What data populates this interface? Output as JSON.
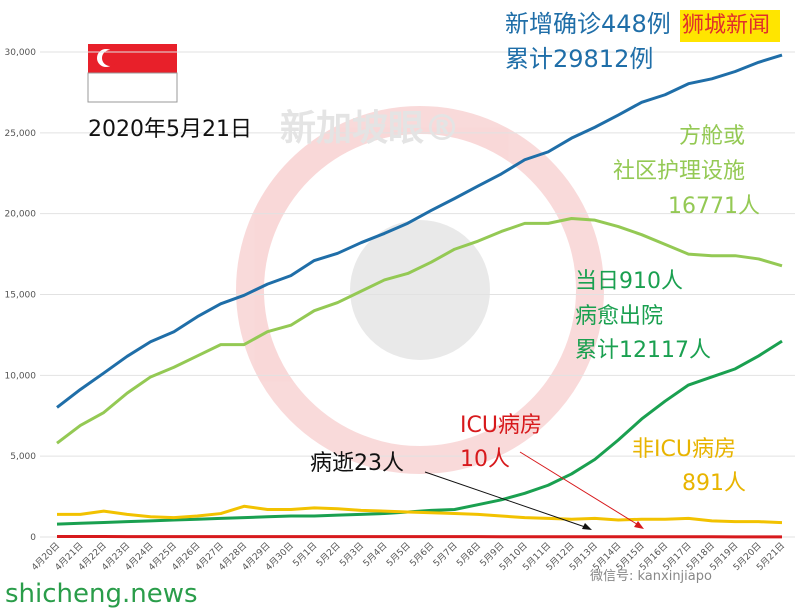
{
  "chart_data": {
    "type": "line",
    "categories": [
      "4月20日",
      "4月21日",
      "4月22日",
      "4月23日",
      "4月24日",
      "4月25日",
      "4月26日",
      "4月27日",
      "4月28日",
      "4月29日",
      "4月30日",
      "5月1日",
      "5月2日",
      "5月3日",
      "5月4日",
      "5月5日",
      "5月6日",
      "5月7日",
      "5月8日",
      "5月9日",
      "5月10日",
      "5月11日",
      "5月12日",
      "5月13日",
      "5月14日",
      "5月15日",
      "5月16日",
      "5月17日",
      "5月18日",
      "5月19日",
      "5月20日",
      "5月21日"
    ],
    "series": [
      {
        "color": "#1f6ea8",
        "values": [
          8014,
          9125,
          10141,
          11178,
          12075,
          12693,
          13624,
          14423,
          14951,
          15641,
          16169,
          17101,
          17548,
          18205,
          18778,
          19410,
          20198,
          20939,
          21707,
          22460,
          23336,
          23822,
          24671,
          25346,
          26098,
          26891,
          27356,
          28038,
          28343,
          28794,
          29364,
          29812
        ]
      },
      {
        "color": "#94c954",
        "values": [
          5800,
          6900,
          7700,
          8900,
          9900,
          10500,
          11200,
          11900,
          11900,
          12700,
          13100,
          14000,
          14500,
          15200,
          15900,
          16300,
          17000,
          17800,
          18300,
          18900,
          19400,
          19400,
          19700,
          19600,
          19200,
          18700,
          18100,
          17500,
          17400,
          17400,
          17200,
          16771
        ]
      },
      {
        "color": "#1aa050",
        "values": [
          800,
          850,
          900,
          950,
          1000,
          1050,
          1100,
          1150,
          1200,
          1250,
          1300,
          1300,
          1350,
          1400,
          1450,
          1550,
          1650,
          1700,
          2000,
          2300,
          2700,
          3200,
          3900,
          4800,
          6000,
          7300,
          8400,
          9400,
          9900,
          10400,
          11200,
          12117
        ]
      },
      {
        "color": "#f2c200",
        "values": [
          1400,
          1400,
          1600,
          1400,
          1250,
          1200,
          1300,
          1450,
          1900,
          1700,
          1700,
          1800,
          1750,
          1650,
          1600,
          1550,
          1500,
          1450,
          1400,
          1300,
          1200,
          1150,
          1100,
          1150,
          1050,
          1100,
          1100,
          1150,
          1000,
          950,
          950,
          891
        ]
      },
      {
        "color": "#d7191c",
        "values": [
          30,
          29,
          28,
          27,
          26,
          26,
          25,
          24,
          24,
          23,
          23,
          22,
          22,
          22,
          22,
          21,
          21,
          20,
          20,
          19,
          18,
          17,
          16,
          15,
          14,
          14,
          13,
          12,
          12,
          11,
          11,
          10
        ]
      }
    ],
    "ylim": [
      0,
      30000
    ],
    "yticks": [
      0,
      {
        "value": 5000,
        "label": "5,000"
      },
      {
        "value": 10000,
        "label": "10,000"
      },
      {
        "value": 15000,
        "label": "15,000"
      },
      {
        "value": 20000,
        "label": "20,000"
      },
      {
        "value": 25000,
        "label": "25,000"
      },
      {
        "value": 30000,
        "label": "30,000"
      }
    ],
    "grid": true,
    "annotations": [
      {
        "text": "新增确诊448例",
        "color": "#1f6ea8"
      },
      {
        "text": "狮城新闻",
        "color": "#e0302a"
      },
      {
        "text": "累计29812例",
        "color": "#1f6ea8"
      },
      {
        "text": "2020年5月21日",
        "color": "#111111"
      },
      {
        "text": "新加坡眼®",
        "color": "#e4e4e4"
      },
      {
        "text": "方舱或",
        "color": "#94c954"
      },
      {
        "text": "社区护理设施",
        "color": "#94c954"
      },
      {
        "text": "16771人",
        "color": "#94c954"
      },
      {
        "text": "当日910人",
        "color": "#1aa050"
      },
      {
        "text": "病愈出院",
        "color": "#1aa050"
      },
      {
        "text": "累计12117人",
        "color": "#1aa050"
      },
      {
        "text": "ICU病房",
        "color": "#d7191c"
      },
      {
        "text": "10人",
        "color": "#d7191c"
      },
      {
        "text": "非ICU病房",
        "color": "#e8b400"
      },
      {
        "text": "891人",
        "color": "#e8b400"
      },
      {
        "text": "病逝23人",
        "color": "#111111"
      },
      {
        "text": "shicheng.news",
        "color": "#2a9d4a"
      },
      {
        "text": "微信号: kanxinjiapo",
        "color": "#888888"
      }
    ]
  }
}
